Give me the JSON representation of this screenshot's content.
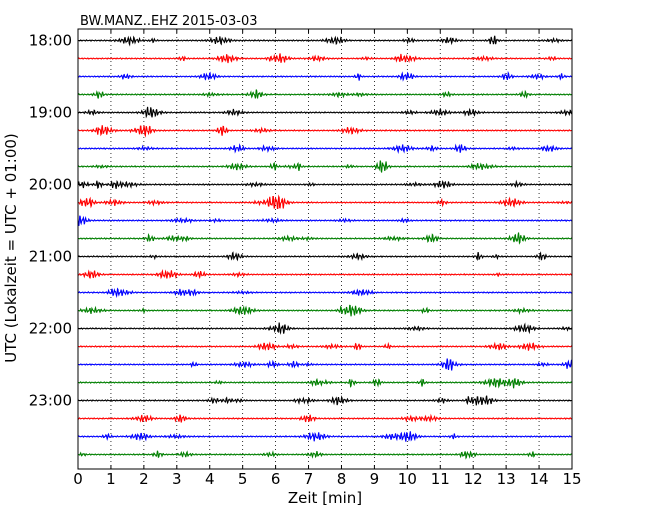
{
  "chart_data": {
    "type": "line",
    "title": "BW.MANZ..EHZ 2015-03-03",
    "xlabel": "Zeit  [min]",
    "ylabel": "UTC (Lokalzeit = UTC + 01:00)",
    "xlim": [
      0,
      15
    ],
    "x_ticks": [
      "0",
      "1",
      "2",
      "3",
      "4",
      "5",
      "6",
      "7",
      "8",
      "9",
      "10",
      "11",
      "12",
      "13",
      "14",
      "15"
    ],
    "y_ticks": [
      "18:00",
      "19:00",
      "20:00",
      "21:00",
      "22:00",
      "23:00"
    ],
    "grid": "vertical dotted lines at each minute",
    "legend": "none",
    "row_interval_min": 15,
    "series_colors": [
      "#000000",
      "#ff0000",
      "#0000ff",
      "#007f00"
    ],
    "rows": [
      {
        "start": "18:00",
        "color": "#000000"
      },
      {
        "start": "18:15",
        "color": "#ff0000"
      },
      {
        "start": "18:30",
        "color": "#0000ff"
      },
      {
        "start": "18:45",
        "color": "#007f00"
      },
      {
        "start": "19:00",
        "color": "#000000"
      },
      {
        "start": "19:15",
        "color": "#ff0000"
      },
      {
        "start": "19:30",
        "color": "#0000ff"
      },
      {
        "start": "19:45",
        "color": "#007f00"
      },
      {
        "start": "20:00",
        "color": "#000000"
      },
      {
        "start": "20:15",
        "color": "#ff0000"
      },
      {
        "start": "20:30",
        "color": "#0000ff"
      },
      {
        "start": "20:45",
        "color": "#007f00"
      },
      {
        "start": "21:00",
        "color": "#000000"
      },
      {
        "start": "21:15",
        "color": "#ff0000"
      },
      {
        "start": "21:30",
        "color": "#0000ff"
      },
      {
        "start": "21:45",
        "color": "#007f00"
      },
      {
        "start": "22:00",
        "color": "#000000"
      },
      {
        "start": "22:15",
        "color": "#ff0000"
      },
      {
        "start": "22:30",
        "color": "#0000ff"
      },
      {
        "start": "22:45",
        "color": "#007f00"
      },
      {
        "start": "23:00",
        "color": "#000000"
      },
      {
        "start": "23:15",
        "color": "#ff0000"
      },
      {
        "start": "23:30",
        "color": "#0000ff"
      },
      {
        "start": "23:45",
        "color": "#007f00"
      }
    ]
  }
}
